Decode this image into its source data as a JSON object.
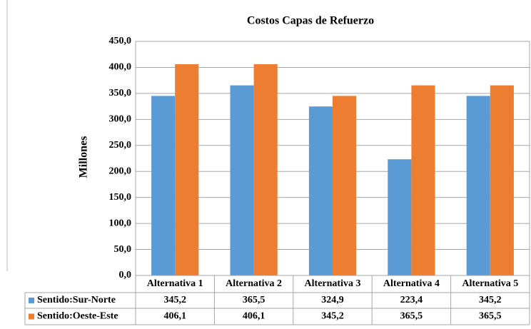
{
  "chart_data": {
    "type": "bar",
    "title": "Costos Capas de Refuerzo",
    "ylabel": "Millones",
    "categories": [
      "Alternativa 1",
      "Alternativa 2",
      "Alternativa 3",
      "Alternativa 4",
      "Alternativa 5"
    ],
    "series": [
      {
        "name": "Sentido:Sur-Norte",
        "color": "#5b9bd5",
        "values": [
          345.2,
          365.5,
          324.9,
          223.4,
          345.2
        ],
        "value_labels": [
          "345,2",
          "365,5",
          "324,9",
          "223,4",
          "345,2"
        ]
      },
      {
        "name": "Sentido:Oeste-Este",
        "color": "#ed7d31",
        "values": [
          406.1,
          406.1,
          345.2,
          365.5,
          365.5
        ],
        "value_labels": [
          "406,1",
          "406,1",
          "345,2",
          "365,5",
          "365,5"
        ]
      }
    ],
    "ylim": [
      0,
      450
    ],
    "yticks": [
      {
        "value": 0,
        "label": "0,0"
      },
      {
        "value": 50,
        "label": "50,0"
      },
      {
        "value": 100,
        "label": "100,0"
      },
      {
        "value": 150,
        "label": "150,0"
      },
      {
        "value": 200,
        "label": "200,0"
      },
      {
        "value": 250,
        "label": "250,0"
      },
      {
        "value": 300,
        "label": "300,0"
      },
      {
        "value": 350,
        "label": "350,0"
      },
      {
        "value": 400,
        "label": "400,0"
      },
      {
        "value": 450,
        "label": "450,0"
      }
    ],
    "grid": true
  }
}
